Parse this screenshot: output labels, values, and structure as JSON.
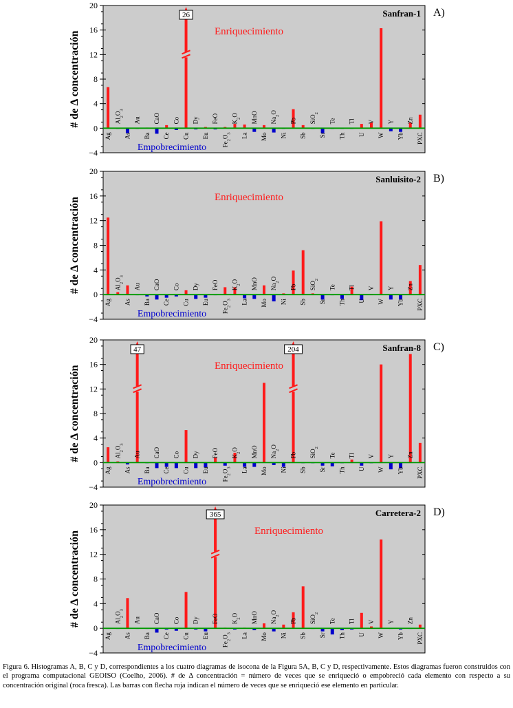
{
  "y_axis_label": "# de Δ concentración",
  "figure_caption": "Figura 6. Histogramas A, B, C y D, correspondientes a los cuatro diagramas de isocona de la Figura 5A, B, C y D, respectivamente. Estos diagramas fueron construidos con el programa computacional GEOISO (Coelho, 2006). # de Δ concentración = número de veces que se enriqueció o empobreció cada elemento con respecto a su concentración original (roca fresca). Las barras con flecha roja indican el número de veces que se enriqueció ese elemento en particular.",
  "colors": {
    "enrich": "#ff1a1a",
    "deplete": "#0000cc",
    "zero_line": "#009900",
    "plot_bg": "#cccccc"
  },
  "chart_data": [
    {
      "type": "bar",
      "letter": "A)",
      "title": "Sanfran-1",
      "ylim": [
        -4,
        20
      ],
      "yticks": [
        -4,
        0,
        4,
        8,
        12,
        16,
        20
      ],
      "enrich_label": "Enriquecimiento",
      "deplete_label": "Empobrecimiento",
      "categories": [
        "Ag",
        "Al2O3",
        "As",
        "Au",
        "Ba",
        "CaO",
        "Ce",
        "Co",
        "Cu",
        "Dy",
        "Eu",
        "FeO",
        "Fe2O3",
        "K2O",
        "La",
        "MnO",
        "Mo",
        "Na2O",
        "Ni",
        "Pb",
        "Sb",
        "SiO2",
        "Sr",
        "Te",
        "Th",
        "Tl",
        "U",
        "V",
        "W",
        "Y",
        "Yb",
        "Zn",
        "PXC"
      ],
      "values": [
        6.7,
        -0.1,
        -0.8,
        -0.1,
        0.1,
        -0.9,
        0.5,
        -0.3,
        20,
        -0.2,
        0.2,
        -0.2,
        0.2,
        0.7,
        0.6,
        -0.6,
        0.5,
        -0.7,
        -0.1,
        3.1,
        0.5,
        -0.1,
        -0.8,
        -0.1,
        -0.1,
        -0.1,
        0.7,
        0.9,
        16.3,
        -0.5,
        -0.6,
        0.9,
        2.2
      ],
      "arrows": [
        {
          "category": "Cu",
          "label": "26"
        }
      ]
    },
    {
      "type": "bar",
      "letter": "B)",
      "title": "Sanluisito-2",
      "ylim": [
        -4,
        20
      ],
      "yticks": [
        -4,
        0,
        4,
        8,
        12,
        16,
        20
      ],
      "enrich_label": "Enriquecimiento",
      "deplete_label": "Empobrecimiento",
      "categories": [
        "Ag",
        "Al2O3",
        "As",
        "Au",
        "Ba",
        "CaO",
        "Ce",
        "Co",
        "Cu",
        "Dy",
        "Eu",
        "FeO",
        "Fe2O3",
        "K2O",
        "La",
        "MnO",
        "Mo",
        "Na2O",
        "Ni",
        "Pb",
        "Sb",
        "SiO2",
        "Sr",
        "Te",
        "Th",
        "Tl",
        "U",
        "V",
        "W",
        "Y",
        "Yb",
        "Zn",
        "PXC"
      ],
      "values": [
        12.5,
        0.4,
        1.5,
        -0.1,
        -0.3,
        -0.8,
        -0.5,
        -0.3,
        0.7,
        -0.7,
        -0.5,
        -0.1,
        1.2,
        1.2,
        -0.6,
        -0.7,
        1.5,
        -1.1,
        0.2,
        3.9,
        7.2,
        0.2,
        -0.8,
        -0.1,
        -0.7,
        1.3,
        -0.9,
        0.1,
        11.9,
        -0.8,
        -0.8,
        2.2,
        4.8
      ],
      "arrows": []
    },
    {
      "type": "bar",
      "letter": "C)",
      "title": "Sanfran-8",
      "ylim": [
        -4,
        20
      ],
      "yticks": [
        -4,
        0,
        4,
        8,
        12,
        16,
        20
      ],
      "enrich_label": "Enriquecimiento",
      "deplete_label": "Empobrecimiento",
      "categories": [
        "Ag",
        "Al2O3",
        "As",
        "Au",
        "Ba",
        "CaO",
        "Ce",
        "Co",
        "Cu",
        "Dy",
        "Eu",
        "FeO",
        "Fe2O3",
        "K2O",
        "La",
        "MnO",
        "Mo",
        "Na2O",
        "Ni",
        "Pb",
        "Sb",
        "SiO2",
        "Sr",
        "Te",
        "Th",
        "Tl",
        "U",
        "V",
        "W",
        "Y",
        "Yb",
        "Zn",
        "PXC"
      ],
      "values": [
        2.5,
        0.2,
        -0.3,
        20,
        -0.1,
        -0.9,
        -0.7,
        -0.9,
        5.3,
        -0.9,
        -0.8,
        0.8,
        -0.5,
        1.6,
        -0.7,
        -0.7,
        13,
        -0.4,
        -0.7,
        20,
        -0.1,
        -0.1,
        -0.5,
        -0.6,
        -0.1,
        0.5,
        -0.5,
        -0.1,
        16,
        -1.1,
        -0.9,
        17.7,
        3.2
      ],
      "arrows": [
        {
          "category": "Au",
          "label": "47"
        },
        {
          "category": "Pb",
          "label": "204"
        }
      ]
    },
    {
      "type": "bar",
      "letter": "D)",
      "title": "Carretera-2",
      "ylim": [
        -4,
        20
      ],
      "yticks": [
        -4,
        0,
        4,
        8,
        12,
        16,
        20
      ],
      "enrich_label": "Enriquecimiento",
      "deplete_label": "Empobrecimiento",
      "categories": [
        "Ag",
        "Al2O3",
        "As",
        "Au",
        "Ba",
        "CaO",
        "Ce",
        "Co",
        "Cu",
        "Dy",
        "Eu",
        "FeO",
        "Fe2O3",
        "K2O",
        "La",
        "MnO",
        "Mo",
        "Na2O",
        "Ni",
        "Pb",
        "Sb",
        "SiO2",
        "Sr",
        "Te",
        "Th",
        "Tl",
        "U",
        "V",
        "W",
        "Y",
        "Yb",
        "Zn",
        "PXC"
      ],
      "values": [
        -0.1,
        -0.1,
        4.9,
        -0.1,
        -0.1,
        -0.7,
        -0.2,
        -0.4,
        5.9,
        -0.2,
        -0.5,
        20,
        0.1,
        -0.2,
        0.1,
        -0.3,
        0.8,
        -0.5,
        0.6,
        2.6,
        6.8,
        -0.1,
        -0.5,
        -1,
        -0.3,
        -0.2,
        2.5,
        0.3,
        14.4,
        -0.1,
        -0.2,
        -0.1,
        0.6
      ],
      "arrows": [
        {
          "category": "FeO",
          "label": "365"
        }
      ]
    }
  ]
}
